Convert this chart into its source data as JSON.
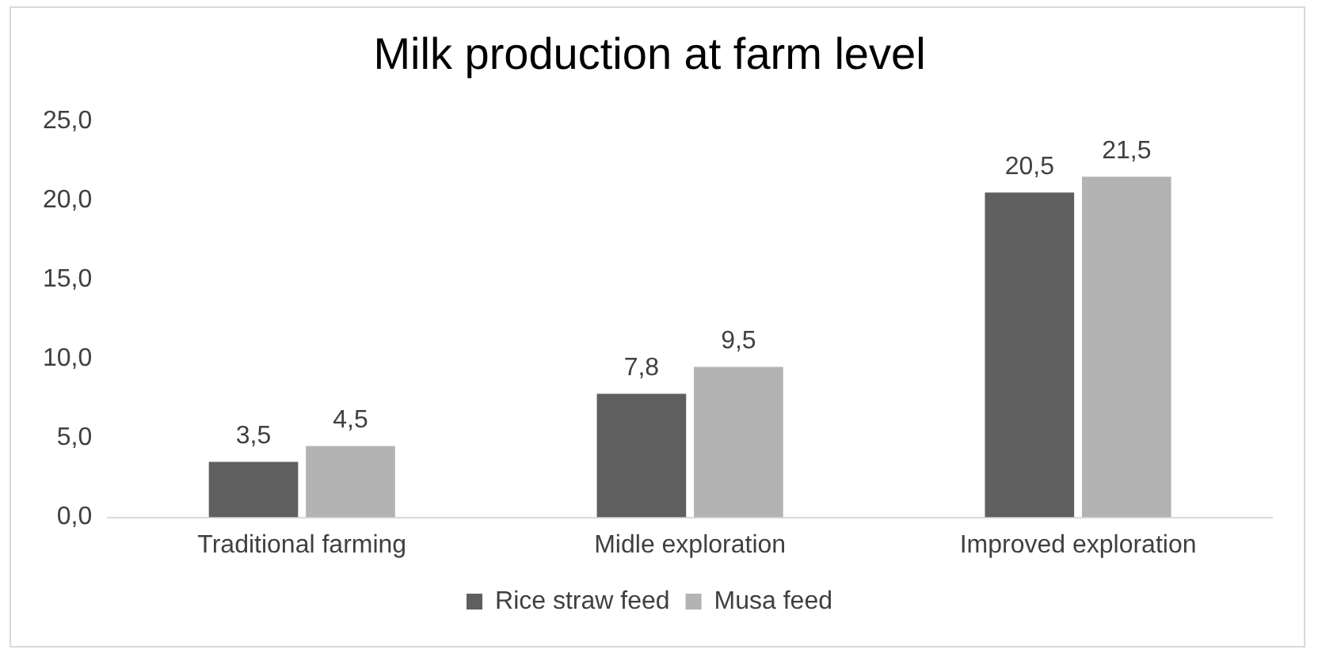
{
  "chart_data": {
    "type": "bar",
    "title": "Milk production at farm level",
    "categories": [
      "Traditional farming",
      "Midle exploration",
      "Improved exploration"
    ],
    "series": [
      {
        "name": "Rice straw feed",
        "color": "#5f5f5f",
        "values": [
          3.5,
          7.8,
          20.5
        ],
        "value_labels": [
          "3,5",
          "7,8",
          "20,5"
        ]
      },
      {
        "name": "Musa feed",
        "color": "#b3b3b3",
        "values": [
          4.5,
          9.5,
          21.5
        ],
        "value_labels": [
          "4,5",
          "9,5",
          "21,5"
        ]
      }
    ],
    "ylim": [
      0,
      25
    ],
    "yticks": [
      {
        "value": 0,
        "label": "0,0"
      },
      {
        "value": 5,
        "label": "5,0"
      },
      {
        "value": 10,
        "label": "10,0"
      },
      {
        "value": 15,
        "label": "15,0"
      },
      {
        "value": 20,
        "label": "20,0"
      },
      {
        "value": 25,
        "label": "25,0"
      }
    ],
    "grid": false,
    "legend": "bottom"
  }
}
